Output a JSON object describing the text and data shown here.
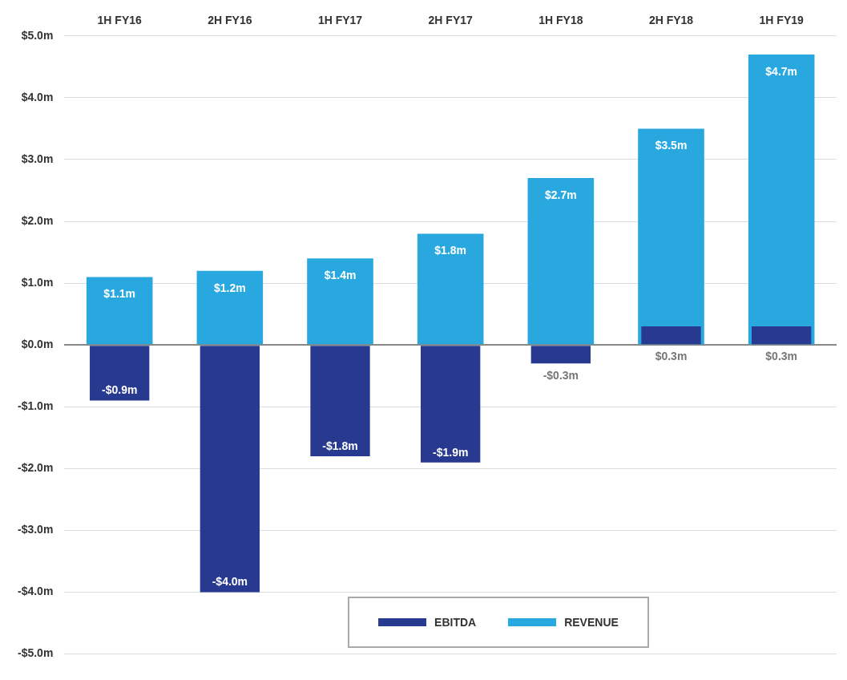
{
  "chart_data": {
    "type": "bar",
    "categories": [
      "1H FY16",
      "2H FY16",
      "1H FY17",
      "2H FY17",
      "1H FY18",
      "2H FY18",
      "1H FY19"
    ],
    "series": [
      {
        "name": "EBITDA",
        "color": "#283a8f",
        "values": [
          -0.9,
          -4.0,
          -1.8,
          -1.9,
          -0.3,
          0.3,
          0.3
        ],
        "value_labels": [
          "-$0.9m",
          "-$4.0m",
          "-$1.8m",
          "-$1.9m",
          "-$0.3m",
          "$0.3m",
          "$0.3m"
        ]
      },
      {
        "name": "REVENUE",
        "color": "#29a8e0",
        "values": [
          1.1,
          1.2,
          1.4,
          1.8,
          2.7,
          3.5,
          4.7
        ],
        "value_labels": [
          "$1.1m",
          "$1.2m",
          "$1.4m",
          "$1.8m",
          "$2.7m",
          "$3.5m",
          "$4.7m"
        ]
      }
    ],
    "ylim": [
      -5,
      5
    ],
    "yticks": [
      {
        "value": -5,
        "label": "-$5.0m"
      },
      {
        "value": -4,
        "label": "-$4.0m"
      },
      {
        "value": -3,
        "label": "-$3.0m"
      },
      {
        "value": -2,
        "label": "-$2.0m"
      },
      {
        "value": -1,
        "label": "-$1.0m"
      },
      {
        "value": 0,
        "label": "$0.0m"
      },
      {
        "value": 1,
        "label": "$1.0m"
      },
      {
        "value": 2,
        "label": "$2.0m"
      },
      {
        "value": 3,
        "label": "$3.0m"
      },
      {
        "value": 4,
        "label": "$4.0m"
      },
      {
        "value": 5,
        "label": "$5.0m"
      }
    ],
    "grid": "y",
    "legend": "bottom"
  }
}
